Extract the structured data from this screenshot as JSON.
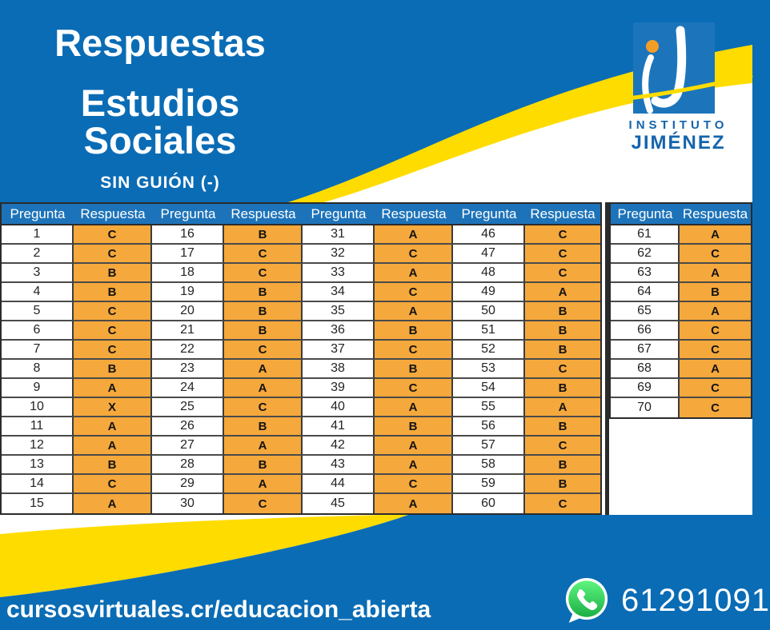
{
  "colors": {
    "background_blue": "#0a6cb5",
    "table_header_blue": "#1d73b9",
    "answer_orange": "#f5a83b",
    "wave_yellow": "#ffdc00",
    "logo_blue": "#1c75bb",
    "logo_text_blue": "#1464ac",
    "whatsapp_green": "#25d366"
  },
  "header": {
    "title_line1": "Respuestas",
    "title_line2": "Estudios Sociales",
    "subtitle": "SIN GUIÓN (-)",
    "logo": {
      "line1": "INSTITUTO",
      "line2": "JIMÉNEZ"
    }
  },
  "table": {
    "column_headers": [
      "Pregunta",
      "Respuesta"
    ],
    "groups": [
      [
        {
          "q": "1",
          "a": "C"
        },
        {
          "q": "2",
          "a": "C"
        },
        {
          "q": "3",
          "a": "B"
        },
        {
          "q": "4",
          "a": "B"
        },
        {
          "q": "5",
          "a": "C"
        },
        {
          "q": "6",
          "a": "C"
        },
        {
          "q": "7",
          "a": "C"
        },
        {
          "q": "8",
          "a": "B"
        },
        {
          "q": "9",
          "a": "A"
        },
        {
          "q": "10",
          "a": "X"
        },
        {
          "q": "11",
          "a": "A"
        },
        {
          "q": "12",
          "a": "A"
        },
        {
          "q": "13",
          "a": "B"
        },
        {
          "q": "14",
          "a": "C"
        },
        {
          "q": "15",
          "a": "A"
        }
      ],
      [
        {
          "q": "16",
          "a": "B"
        },
        {
          "q": "17",
          "a": "C"
        },
        {
          "q": "18",
          "a": "C"
        },
        {
          "q": "19",
          "a": "B"
        },
        {
          "q": "20",
          "a": "B"
        },
        {
          "q": "21",
          "a": "B"
        },
        {
          "q": "22",
          "a": "C"
        },
        {
          "q": "23",
          "a": "A"
        },
        {
          "q": "24",
          "a": "A"
        },
        {
          "q": "25",
          "a": "C"
        },
        {
          "q": "26",
          "a": "B"
        },
        {
          "q": "27",
          "a": "A"
        },
        {
          "q": "28",
          "a": "B"
        },
        {
          "q": "29",
          "a": "A"
        },
        {
          "q": "30",
          "a": "C"
        }
      ],
      [
        {
          "q": "31",
          "a": "A"
        },
        {
          "q": "32",
          "a": "C"
        },
        {
          "q": "33",
          "a": "A"
        },
        {
          "q": "34",
          "a": "C"
        },
        {
          "q": "35",
          "a": "A"
        },
        {
          "q": "36",
          "a": "B"
        },
        {
          "q": "37",
          "a": "C"
        },
        {
          "q": "38",
          "a": "B"
        },
        {
          "q": "39",
          "a": "C"
        },
        {
          "q": "40",
          "a": "A"
        },
        {
          "q": "41",
          "a": "B"
        },
        {
          "q": "42",
          "a": "A"
        },
        {
          "q": "43",
          "a": "A"
        },
        {
          "q": "44",
          "a": "C"
        },
        {
          "q": "45",
          "a": "A"
        }
      ],
      [
        {
          "q": "46",
          "a": "C"
        },
        {
          "q": "47",
          "a": "C"
        },
        {
          "q": "48",
          "a": "C"
        },
        {
          "q": "49",
          "a": "A"
        },
        {
          "q": "50",
          "a": "B"
        },
        {
          "q": "51",
          "a": "B"
        },
        {
          "q": "52",
          "a": "B"
        },
        {
          "q": "53",
          "a": "C"
        },
        {
          "q": "54",
          "a": "B"
        },
        {
          "q": "55",
          "a": "A"
        },
        {
          "q": "56",
          "a": "B"
        },
        {
          "q": "57",
          "a": "C"
        },
        {
          "q": "58",
          "a": "B"
        },
        {
          "q": "59",
          "a": "B"
        },
        {
          "q": "60",
          "a": "C"
        }
      ],
      [
        {
          "q": "61",
          "a": "A"
        },
        {
          "q": "62",
          "a": "C"
        },
        {
          "q": "63",
          "a": "A"
        },
        {
          "q": "64",
          "a": "B"
        },
        {
          "q": "65",
          "a": "A"
        },
        {
          "q": "66",
          "a": "C"
        },
        {
          "q": "67",
          "a": "C"
        },
        {
          "q": "68",
          "a": "A"
        },
        {
          "q": "69",
          "a": "C"
        },
        {
          "q": "70",
          "a": "C"
        }
      ]
    ]
  },
  "footer": {
    "url": "cursosvirtuales.cr/educacion_abierta",
    "phone": "61291091"
  }
}
